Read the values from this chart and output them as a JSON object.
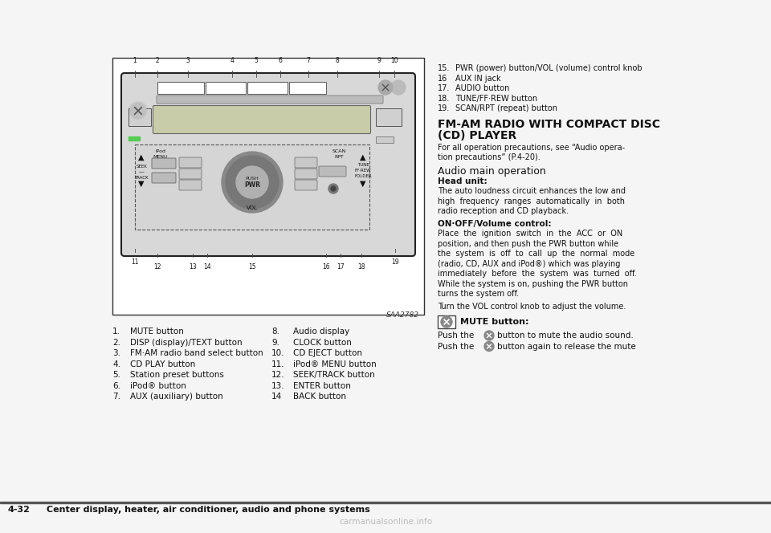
{
  "bg_color": "#ffffff",
  "title_line1": "FM-AM RADIO WITH COMPACT DISC",
  "title_line2": "(CD) PLAYER",
  "subtitle1_line1": "For all operation precautions, see “Audio opera-",
  "subtitle1_line2": "tion precautions” (P.4-20).",
  "subtitle2": "Audio main operation",
  "bold1": "Head unit:",
  "para1_lines": [
    "The auto loudness circuit enhances the low and",
    "high  frequency  ranges  automatically  in  both",
    "radio reception and CD playback."
  ],
  "bold2": "ON·OFF/Volume control:",
  "para2_lines": [
    "Place  the  ignition  switch  in  the  ACC  or  ON",
    "position, and then push the PWR button while",
    "the  system  is  off  to  call  up  the  normal  mode",
    "(radio, CD, AUX and iPod®) which was playing",
    "immediately  before  the  system  was  turned  off.",
    "While the system is on, pushing the PWR button",
    "turns the system off."
  ],
  "para3": "Turn the VOL control knob to adjust the volume.",
  "mute_head": "MUTE button:",
  "mute_p1a": "Push the ",
  "mute_p1b": " button to mute the audio sound.",
  "mute_p2a": "Push the ",
  "mute_p2b": " button again to release the mute",
  "list_left_nums": [
    "1.",
    "2.",
    "3.",
    "4.",
    "5.",
    "6.",
    "7."
  ],
  "list_left_texts": [
    "MUTE button",
    "DISP (display)/TEXT button",
    "FM·AM radio band select button",
    "CD PLAY button",
    "Station preset buttons",
    "iPod® button",
    "AUX (auxiliary) button"
  ],
  "list_right_nums": [
    "8.",
    "9.",
    "10.",
    "11.",
    "12.",
    "13.",
    "14"
  ],
  "list_right_texts": [
    "Audio display",
    "CLOCK button",
    "CD EJECT button",
    "iPod® MENU button",
    "SEEK/TRACK button",
    "ENTER button",
    "BACK button"
  ],
  "items_15_19_nums": [
    "15.",
    "16",
    "17.",
    "18.",
    "19."
  ],
  "items_15_19_texts": [
    "PWR (power) button/VOL (volume) control knob",
    "AUX IN jack",
    "AUDIO button",
    "TUNE/FF·REW button",
    "SCAN/RPT (repeat) button"
  ],
  "footer_num": "4-32",
  "footer_text": "Center display, heater, air conditioner, audio and phone systems",
  "saa_ref": "SAA2782",
  "watermark": "carmanualsonline.info"
}
